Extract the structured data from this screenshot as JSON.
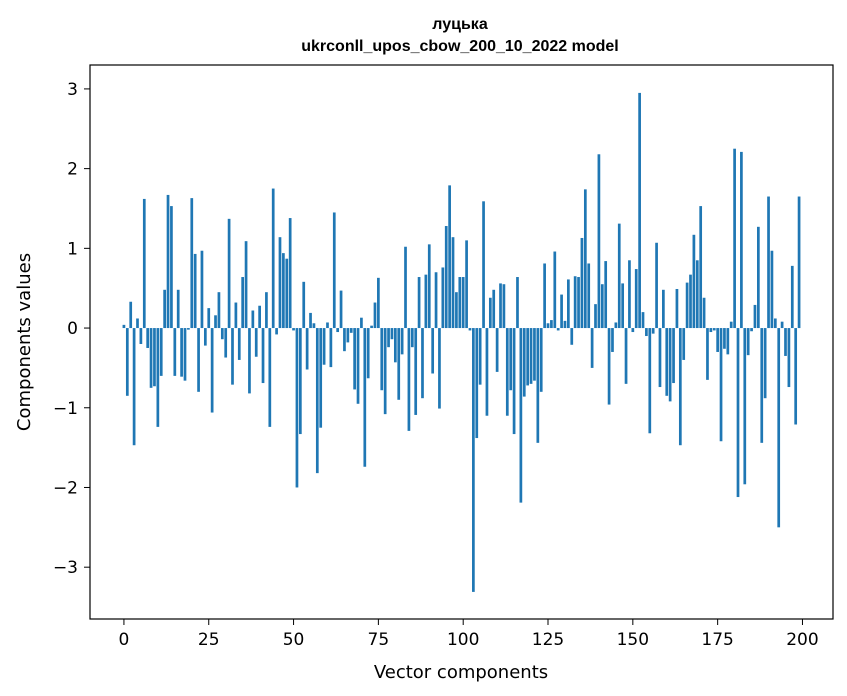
{
  "chart_data": {
    "type": "bar",
    "title": "луцька",
    "subtitle": "ukrconll_upos_cbow_200_10_2022 model",
    "xlabel": "Vector components",
    "ylabel": "Components values",
    "xlim": [
      -10,
      209
    ],
    "ylim": [
      -3.65,
      3.3
    ],
    "xticks": [
      0,
      25,
      50,
      75,
      100,
      125,
      150,
      175,
      200
    ],
    "yticks": [
      -3,
      -2,
      -1,
      0,
      1,
      2,
      3
    ],
    "bar_color": "#1f77b4",
    "grid": false,
    "legend": "none",
    "x": [
      0,
      1,
      2,
      3,
      4,
      5,
      6,
      7,
      8,
      9,
      10,
      11,
      12,
      13,
      14,
      15,
      16,
      17,
      18,
      19,
      20,
      21,
      22,
      23,
      24,
      25,
      26,
      27,
      28,
      29,
      30,
      31,
      32,
      33,
      34,
      35,
      36,
      37,
      38,
      39,
      40,
      41,
      42,
      43,
      44,
      45,
      46,
      47,
      48,
      49,
      50,
      51,
      52,
      53,
      54,
      55,
      56,
      57,
      58,
      59,
      60,
      61,
      62,
      63,
      64,
      65,
      66,
      67,
      68,
      69,
      70,
      71,
      72,
      73,
      74,
      75,
      76,
      77,
      78,
      79,
      80,
      81,
      82,
      83,
      84,
      85,
      86,
      87,
      88,
      89,
      90,
      91,
      92,
      93,
      94,
      95,
      96,
      97,
      98,
      99,
      100,
      101,
      102,
      103,
      104,
      105,
      106,
      107,
      108,
      109,
      110,
      111,
      112,
      113,
      114,
      115,
      116,
      117,
      118,
      119,
      120,
      121,
      122,
      123,
      124,
      125,
      126,
      127,
      128,
      129,
      130,
      131,
      132,
      133,
      134,
      135,
      136,
      137,
      138,
      139,
      140,
      141,
      142,
      143,
      144,
      145,
      146,
      147,
      148,
      149,
      150,
      151,
      152,
      153,
      154,
      155,
      156,
      157,
      158,
      159,
      160,
      161,
      162,
      163,
      164,
      165,
      166,
      167,
      168,
      169,
      170,
      171,
      172,
      173,
      174,
      175,
      176,
      177,
      178,
      179,
      180,
      181,
      182,
      183,
      184,
      185,
      186,
      187,
      188,
      189,
      190,
      191,
      192,
      193,
      194,
      195,
      196,
      197,
      198,
      199
    ],
    "values": [
      0.04,
      -0.85,
      0.33,
      -1.47,
      0.12,
      -0.2,
      1.62,
      -0.25,
      -0.75,
      -0.73,
      -1.24,
      -0.6,
      0.48,
      1.67,
      1.53,
      -0.6,
      0.48,
      -0.61,
      -0.66,
      -0.02,
      1.63,
      0.93,
      -0.8,
      0.97,
      -0.22,
      0.25,
      -1.06,
      0.16,
      0.45,
      -0.14,
      -0.37,
      1.37,
      -0.71,
      0.32,
      -0.4,
      0.64,
      1.09,
      -0.82,
      0.22,
      -0.36,
      0.28,
      -0.69,
      0.45,
      -1.24,
      1.75,
      -0.08,
      1.14,
      0.94,
      0.87,
      1.38,
      -0.03,
      -2.0,
      -1.33,
      0.58,
      -0.52,
      0.19,
      0.06,
      -1.82,
      -1.25,
      -0.46,
      0.07,
      -0.49,
      1.45,
      -0.05,
      0.47,
      -0.29,
      -0.18,
      -0.06,
      -0.77,
      -0.95,
      0.13,
      -1.74,
      -0.63,
      0.03,
      0.32,
      0.63,
      -0.78,
      -1.08,
      -0.24,
      -0.14,
      -0.43,
      -0.9,
      -0.33,
      1.02,
      -1.29,
      -0.24,
      -1.09,
      0.64,
      -0.88,
      0.67,
      1.05,
      -0.57,
      0.7,
      -1.01,
      0.76,
      1.28,
      1.79,
      1.14,
      0.45,
      0.64,
      0.64,
      1.1,
      -0.03,
      -3.31,
      -1.38,
      -0.71,
      1.59,
      -1.1,
      0.38,
      0.48,
      -0.55,
      0.56,
      0.55,
      -1.1,
      -0.78,
      -1.33,
      0.64,
      -2.19,
      -0.86,
      -0.72,
      -0.7,
      -0.66,
      -1.44,
      -0.8,
      0.81,
      0.06,
      0.1,
      0.96,
      -0.03,
      0.42,
      0.09,
      0.61,
      -0.21,
      0.65,
      0.64,
      1.13,
      1.74,
      0.81,
      -0.5,
      0.3,
      2.18,
      0.55,
      0.84,
      -0.96,
      -0.3,
      0.07,
      1.31,
      0.56,
      -0.7,
      0.85,
      -0.05,
      0.74,
      2.95,
      0.2,
      -0.1,
      -1.32,
      -0.07,
      1.07,
      -0.74,
      0.48,
      -0.85,
      -0.92,
      -0.69,
      0.49,
      -1.47,
      -0.4,
      0.57,
      0.67,
      1.17,
      0.85,
      1.53,
      0.38,
      -0.65,
      -0.05,
      -0.03,
      -0.3,
      -1.42,
      -0.26,
      -0.33,
      0.08,
      2.25,
      -2.12,
      2.21,
      -1.96,
      -0.34,
      -0.04,
      0.29,
      1.27,
      -1.44,
      -0.88,
      1.65,
      0.97,
      0.12,
      -2.5,
      0.08,
      -0.35,
      -0.74,
      0.78,
      -1.21,
      1.65
    ]
  }
}
